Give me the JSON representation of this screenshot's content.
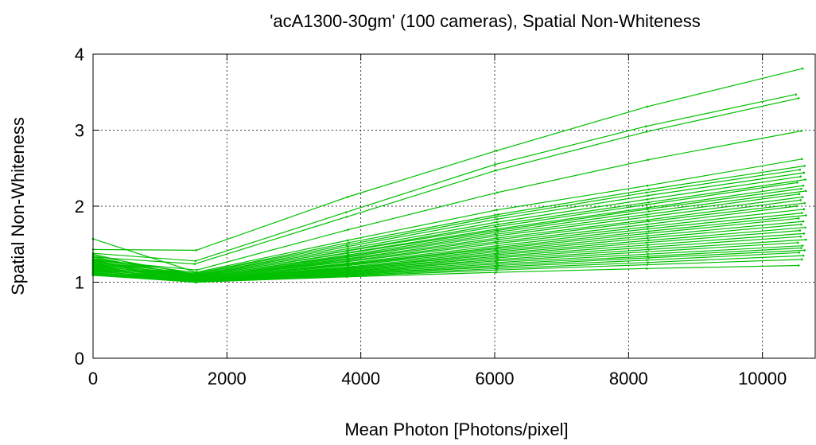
{
  "chart_data": {
    "type": "line",
    "title": "'acA1300-30gm' (100 cameras), Spatial Non-Whiteness",
    "xlabel": "Mean Photon [Photons/pixel]",
    "ylabel": "Spatial Non-Whiteness",
    "xlim": [
      0,
      10800
    ],
    "ylim": [
      0,
      4
    ],
    "xticks": [
      0,
      2000,
      4000,
      6000,
      8000,
      10000
    ],
    "yticks": [
      0,
      1,
      2,
      3,
      4
    ],
    "xtick_labels": [
      "0",
      "2000",
      "4000",
      "6000",
      "8000",
      "10000"
    ],
    "ytick_labels": [
      "0",
      "1",
      "2",
      "3",
      "4"
    ],
    "grid": true,
    "legend": false,
    "series_color": "#00c000",
    "series": [
      {
        "x": [
          0,
          1540,
          3800,
          6030,
          8280,
          10600
        ],
        "y": [
          1.43,
          1.42,
          2.12,
          2.73,
          3.31,
          3.81
        ]
      },
      {
        "x": [
          0,
          1530,
          3780,
          6010,
          8260,
          10500
        ],
        "y": [
          1.38,
          1.28,
          1.92,
          2.55,
          3.05,
          3.47
        ]
      },
      {
        "x": [
          0,
          1520,
          3790,
          6020,
          8270,
          10540
        ],
        "y": [
          1.33,
          1.24,
          1.86,
          2.47,
          2.98,
          3.42
        ]
      },
      {
        "x": [
          0,
          1550,
          3810,
          6040,
          8290,
          10580
        ],
        "y": [
          1.29,
          1.16,
          1.69,
          2.18,
          2.61,
          2.99
        ]
      },
      {
        "x": [
          0,
          1540,
          3800,
          6030,
          8280,
          10590
        ],
        "y": [
          1.57,
          1.13,
          1.55,
          1.95,
          2.27,
          2.62
        ]
      },
      {
        "x": [
          0,
          1560,
          3820,
          6050,
          8300,
          10630
        ],
        "y": [
          1.31,
          1.12,
          1.52,
          1.89,
          2.22,
          2.53
        ]
      },
      {
        "x": [
          0,
          1530,
          3790,
          6020,
          8270,
          10560
        ],
        "y": [
          1.27,
          1.11,
          1.49,
          1.86,
          2.18,
          2.48
        ]
      },
      {
        "x": [
          0,
          1550,
          3810,
          6040,
          8290,
          10620
        ],
        "y": [
          1.24,
          1.1,
          1.47,
          1.83,
          2.14,
          2.44
        ]
      },
      {
        "x": [
          0,
          1540,
          3800,
          6030,
          8280,
          10570
        ],
        "y": [
          1.35,
          1.1,
          1.44,
          1.79,
          2.09,
          2.39
        ]
      },
      {
        "x": [
          0,
          1560,
          3820,
          6050,
          8300,
          10640
        ],
        "y": [
          1.21,
          1.09,
          1.42,
          1.76,
          2.05,
          2.35
        ]
      },
      {
        "x": [
          0,
          1530,
          3790,
          6020,
          8270,
          10520
        ],
        "y": [
          1.3,
          1.09,
          1.41,
          1.73,
          2.02,
          2.31
        ]
      },
      {
        "x": [
          0,
          1550,
          3810,
          6040,
          8290,
          10610
        ],
        "y": [
          1.26,
          1.08,
          1.39,
          1.7,
          1.98,
          2.27
        ]
      },
      {
        "x": [
          0,
          1540,
          3800,
          6030,
          8280,
          10580
        ],
        "y": [
          1.18,
          1.08,
          1.38,
          1.68,
          1.96,
          2.23
        ]
      },
      {
        "x": [
          0,
          1560,
          3820,
          6050,
          8300,
          10650
        ],
        "y": [
          1.33,
          1.07,
          1.36,
          1.66,
          1.93,
          2.2
        ]
      },
      {
        "x": [
          0,
          1530,
          3790,
          6020,
          8270,
          10550
        ],
        "y": [
          1.22,
          1.07,
          1.34,
          1.63,
          1.89,
          2.16
        ]
      },
      {
        "x": [
          0,
          1550,
          3810,
          6040,
          8290,
          10600
        ],
        "y": [
          1.28,
          1.06,
          1.33,
          1.61,
          1.86,
          2.12
        ]
      },
      {
        "x": [
          0,
          1540,
          3800,
          6030,
          8280,
          10570
        ],
        "y": [
          1.16,
          1.06,
          1.31,
          1.58,
          1.82,
          2.08
        ]
      },
      {
        "x": [
          0,
          1560,
          3820,
          6050,
          8300,
          10630
        ],
        "y": [
          1.25,
          1.05,
          1.3,
          1.56,
          1.8,
          2.04
        ]
      },
      {
        "x": [
          0,
          1530,
          3790,
          6020,
          8270,
          10510
        ],
        "y": [
          1.37,
          1.05,
          1.28,
          1.53,
          1.76,
          2.0
        ]
      },
      {
        "x": [
          0,
          1550,
          3810,
          6040,
          8290,
          10620
        ],
        "y": [
          1.2,
          1.05,
          1.27,
          1.51,
          1.73,
          1.96
        ]
      },
      {
        "x": [
          0,
          1540,
          3800,
          6030,
          8280,
          10590
        ],
        "y": [
          1.14,
          1.04,
          1.25,
          1.48,
          1.7,
          1.91
        ]
      },
      {
        "x": [
          0,
          1560,
          3820,
          6050,
          8300,
          10650
        ],
        "y": [
          1.23,
          1.04,
          1.24,
          1.46,
          1.67,
          1.88
        ]
      },
      {
        "x": [
          0,
          1530,
          3790,
          6020,
          8270,
          10540
        ],
        "y": [
          1.29,
          1.04,
          1.23,
          1.44,
          1.64,
          1.84
        ]
      },
      {
        "x": [
          0,
          1550,
          3810,
          6040,
          8290,
          10610
        ],
        "y": [
          1.17,
          1.03,
          1.22,
          1.42,
          1.61,
          1.8
        ]
      },
      {
        "x": [
          0,
          1540,
          3800,
          6030,
          8280,
          10580
        ],
        "y": [
          1.12,
          1.03,
          1.2,
          1.4,
          1.58,
          1.76
        ]
      },
      {
        "x": [
          0,
          1560,
          3820,
          6050,
          8300,
          10640
        ],
        "y": [
          1.21,
          1.03,
          1.19,
          1.38,
          1.55,
          1.72
        ]
      },
      {
        "x": [
          0,
          1530,
          3790,
          6020,
          8270,
          10560
        ],
        "y": [
          1.15,
          1.02,
          1.18,
          1.36,
          1.52,
          1.68
        ]
      },
      {
        "x": [
          0,
          1550,
          3810,
          6040,
          8290,
          10620
        ],
        "y": [
          1.19,
          1.02,
          1.17,
          1.34,
          1.49,
          1.64
        ]
      },
      {
        "x": [
          0,
          1540,
          3800,
          6030,
          8280,
          10570
        ],
        "y": [
          1.11,
          1.02,
          1.16,
          1.32,
          1.46,
          1.6
        ]
      },
      {
        "x": [
          0,
          1560,
          3820,
          6050,
          8300,
          10650
        ],
        "y": [
          1.24,
          1.02,
          1.15,
          1.3,
          1.43,
          1.56
        ]
      },
      {
        "x": [
          0,
          1530,
          3790,
          6020,
          8270,
          10530
        ],
        "y": [
          1.13,
          1.01,
          1.14,
          1.28,
          1.4,
          1.52
        ]
      },
      {
        "x": [
          0,
          1550,
          3810,
          6040,
          8290,
          10600
        ],
        "y": [
          1.18,
          1.01,
          1.13,
          1.26,
          1.37,
          1.48
        ]
      },
      {
        "x": [
          0,
          1540,
          3800,
          6030,
          8280,
          10580
        ],
        "y": [
          1.1,
          1.01,
          1.12,
          1.24,
          1.34,
          1.45
        ]
      },
      {
        "x": [
          0,
          1560,
          3820,
          6050,
          8300,
          10630
        ],
        "y": [
          1.15,
          1.01,
          1.11,
          1.22,
          1.32,
          1.42
        ]
      },
      {
        "x": [
          0,
          1530,
          3790,
          6020,
          8270,
          10550
        ],
        "y": [
          1.12,
          1.0,
          1.1,
          1.2,
          1.29,
          1.39
        ]
      },
      {
        "x": [
          0,
          1550,
          3810,
          6040,
          8290,
          10610
        ],
        "y": [
          1.09,
          1.0,
          1.09,
          1.18,
          1.26,
          1.35
        ]
      },
      {
        "x": [
          0,
          1540,
          3800,
          6030,
          8280,
          10590
        ],
        "y": [
          1.16,
          1.0,
          1.08,
          1.16,
          1.23,
          1.3
        ]
      },
      {
        "x": [
          0,
          1530,
          3790,
          6020,
          8270,
          10540
        ],
        "y": [
          1.1,
          1.0,
          1.07,
          1.13,
          1.18,
          1.22
        ]
      }
    ]
  }
}
